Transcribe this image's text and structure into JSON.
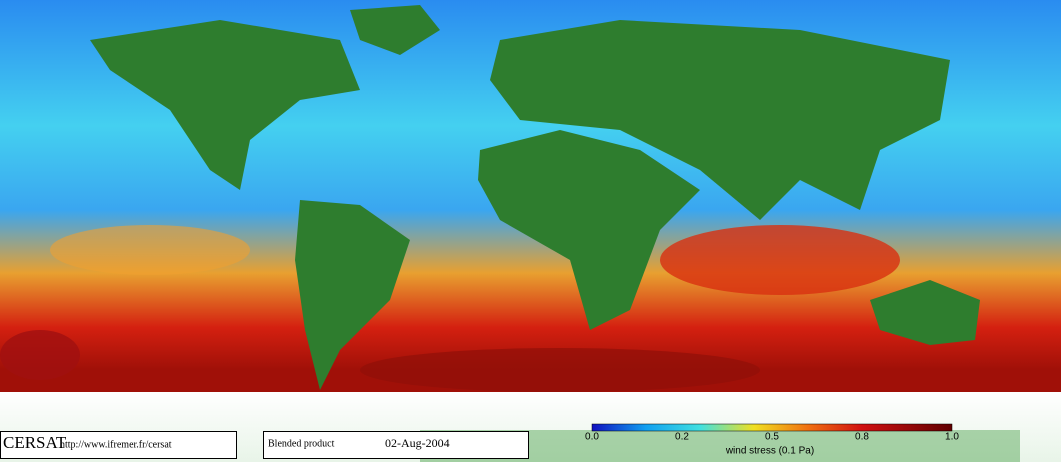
{
  "footer": {
    "logo": "CERSAT",
    "url": "http://www.ifremer.fr/cersat",
    "product": "Blended product",
    "date": "02-Aug-2004"
  },
  "colorbar": {
    "ticks": [
      "0.0",
      "0.2",
      "0.5",
      "0.8",
      "1.0"
    ],
    "label": "wind stress (0.1 Pa)"
  }
}
